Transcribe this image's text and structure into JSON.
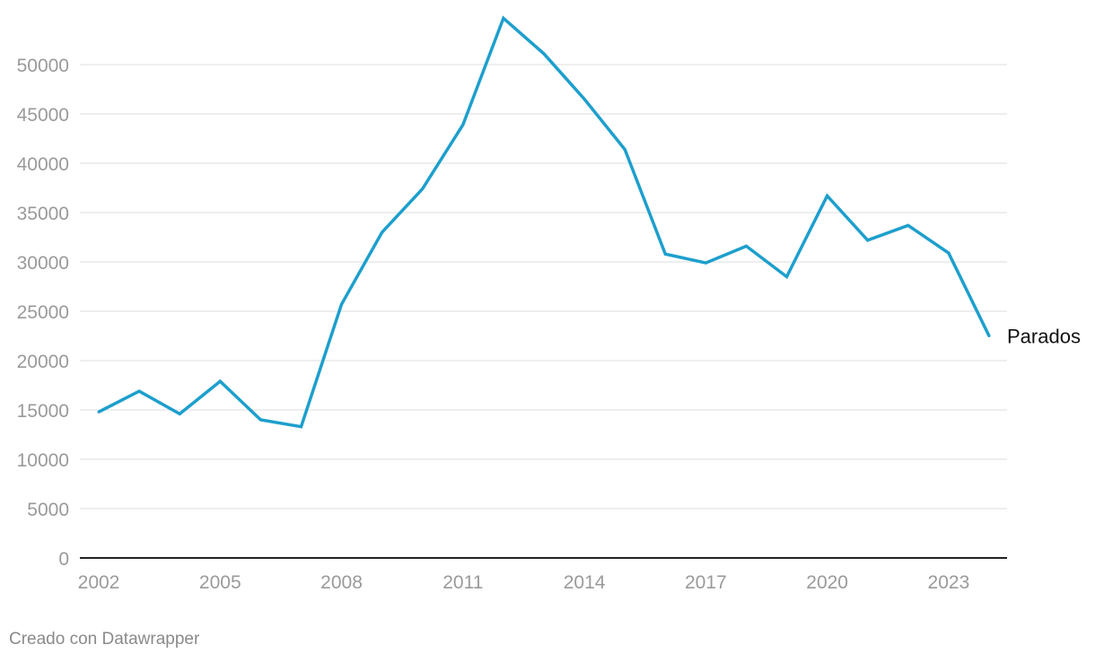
{
  "chart_data": {
    "type": "line",
    "x": [
      2002,
      2003,
      2004,
      2005,
      2006,
      2007,
      2008,
      2009,
      2010,
      2011,
      2012,
      2013,
      2014,
      2015,
      2016,
      2017,
      2018,
      2019,
      2020,
      2021,
      2022,
      2023,
      2024
    ],
    "series": [
      {
        "name": "Parados",
        "color": "#1d9fcd",
        "values": [
          14800,
          16900,
          14600,
          17900,
          14000,
          13300,
          25700,
          33000,
          37400,
          43900,
          54700,
          51100,
          46500,
          41400,
          30800,
          29900,
          31600,
          28500,
          36700,
          32200,
          33700,
          30900,
          22500
        ]
      }
    ],
    "x_ticks": [
      "2002",
      "2005",
      "2008",
      "2011",
      "2014",
      "2017",
      "2020",
      "2023"
    ],
    "y_ticks": [
      "0",
      "5000",
      "10000",
      "15000",
      "20000",
      "25000",
      "30000",
      "35000",
      "40000",
      "45000",
      "50000"
    ],
    "ylim": [
      0,
      55000
    ],
    "xlim": [
      2002,
      2024
    ],
    "grid": true,
    "legend": "inline-end"
  },
  "credit": "Creado con Datawrapper"
}
